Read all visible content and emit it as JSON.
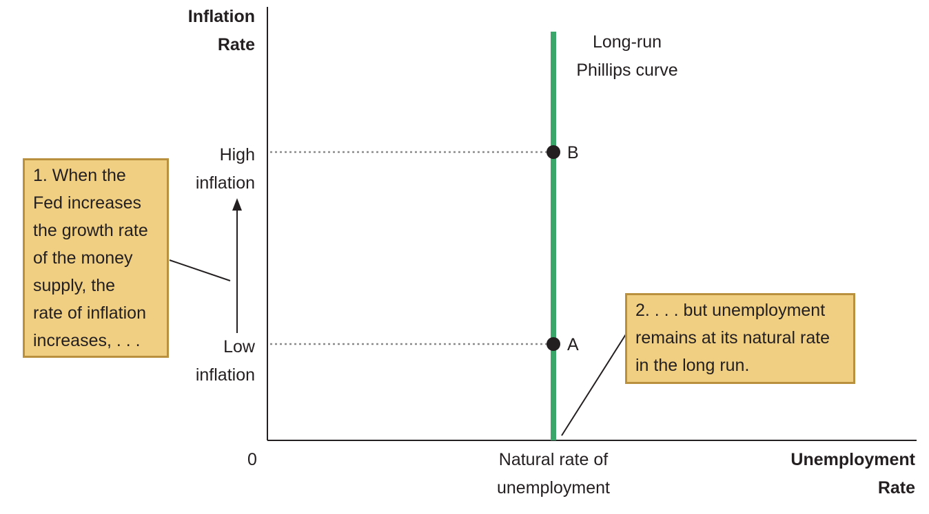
{
  "axes": {
    "y_label_line1": "Inflation",
    "y_label_line2": "Rate",
    "x_label_line1": "Unemployment",
    "x_label_line2": "Rate",
    "origin": "0"
  },
  "curve": {
    "label_line1": "Long-run",
    "label_line2": "Phillips curve",
    "color": "#3aa66a"
  },
  "y_ticks": {
    "high_line1": "High",
    "high_line2": "inflation",
    "low_line1": "Low",
    "low_line2": "inflation"
  },
  "x_tick": {
    "line1": "Natural rate of",
    "line2": "unemployment"
  },
  "points": {
    "a": "A",
    "b": "B"
  },
  "callouts": {
    "first": "1. When the\nFed increases\nthe growth rate\nof the money\nsupply, the\nrate of inflation\nincreases, . . .",
    "second": "2. . . . but unemployment\nremains at its natural rate\nin the long run."
  },
  "colors": {
    "callout_fill": "#f0cf83",
    "callout_border": "#b8903e"
  }
}
